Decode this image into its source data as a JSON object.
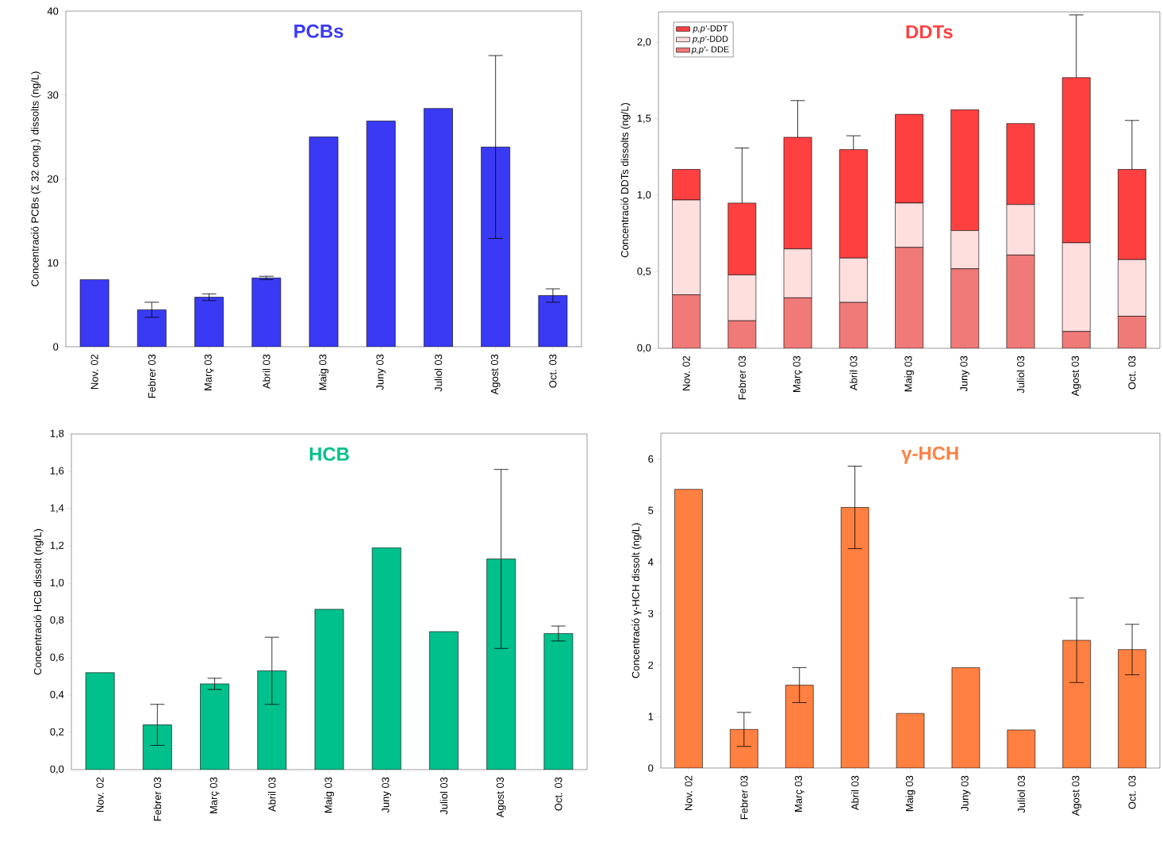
{
  "chart_data": [
    {
      "type": "bar",
      "title": "PCBs",
      "ylabel": "Concentració PCBs (Σ 32 cong.) dissolts (ng/L)",
      "categories": [
        "Nov. 02",
        "Febrer 03",
        "Març 03",
        "Abril 03",
        "Maig 03",
        "Juny 03",
        "Juliol 03",
        "Agost 03",
        "Oct. 03"
      ],
      "series": [
        {
          "color": "#3a3af5",
          "values": [
            8.0,
            4.4,
            5.9,
            8.2,
            25.0,
            26.9,
            28.4,
            23.8,
            6.1
          ],
          "errors": [
            null,
            0.9,
            0.4,
            0.2,
            null,
            null,
            null,
            10.9,
            0.8
          ]
        }
      ],
      "ylim": [
        0,
        40
      ],
      "yticks": [
        0,
        10,
        20,
        30,
        40
      ]
    },
    {
      "type": "bar",
      "title": "DDTs",
      "ylabel": "Concentració DDTs dissolts (ng/L)",
      "stacked": true,
      "legend": "top left",
      "categories": [
        "Nov. 02",
        "Febrer 03",
        "Març 03",
        "Abril 03",
        "Maig 03",
        "Juny 03",
        "Juliol 03",
        "Agost 03",
        "Oct. 03"
      ],
      "series": [
        {
          "name": "*p,p'*- DDE",
          "color": "#f07a78",
          "values": [
            0.35,
            0.18,
            0.33,
            0.3,
            0.66,
            0.52,
            0.61,
            0.11,
            0.21
          ]
        },
        {
          "name": "*p,p'*-DDD",
          "color": "#ffdede",
          "values": [
            0.62,
            0.3,
            0.32,
            0.29,
            0.29,
            0.25,
            0.33,
            0.58,
            0.37
          ]
        },
        {
          "name": "*p,p'*-DDT",
          "color": "#ff4040",
          "values": [
            0.2,
            0.47,
            0.73,
            0.71,
            0.58,
            0.79,
            0.53,
            1.08,
            0.59
          ],
          "errors": [
            null,
            0.36,
            0.24,
            0.09,
            null,
            null,
            null,
            0.41,
            0.32
          ]
        }
      ],
      "ylim": [
        0,
        2.2
      ],
      "yticks": [
        {
          "value": 0,
          "label": "0,0"
        },
        {
          "value": 0.5,
          "label": "0,5"
        },
        {
          "value": 1.0,
          "label": "1,0"
        },
        {
          "value": 1.5,
          "label": "1,5"
        },
        {
          "value": 2.0,
          "label": "2,0"
        }
      ]
    },
    {
      "type": "bar",
      "title": "HCB",
      "ylabel": "Concentració HCB dissolt (ng/L)",
      "categories": [
        "Nov. 02",
        "Febrer 03",
        "Març 03",
        "Abril 03",
        "Maig 03",
        "Juny 03",
        "Juliol 03",
        "Agost 03",
        "Oct. 03"
      ],
      "series": [
        {
          "color": "#00c08b",
          "values": [
            0.52,
            0.24,
            0.46,
            0.53,
            0.86,
            1.19,
            0.74,
            1.13,
            0.73
          ],
          "errors": [
            null,
            0.11,
            0.03,
            0.18,
            null,
            null,
            null,
            0.48,
            0.04
          ]
        }
      ],
      "ylim": [
        0,
        1.8
      ],
      "yticks": [
        {
          "value": 0,
          "label": "0,0"
        },
        {
          "value": 0.2,
          "label": "0,2"
        },
        {
          "value": 0.4,
          "label": "0,4"
        },
        {
          "value": 0.6,
          "label": "0,6"
        },
        {
          "value": 0.8,
          "label": "0,8"
        },
        {
          "value": 1.0,
          "label": "1,0"
        },
        {
          "value": 1.2,
          "label": "1,2"
        },
        {
          "value": 1.4,
          "label": "1,4"
        },
        {
          "value": 1.6,
          "label": "1,6"
        },
        {
          "value": 1.8,
          "label": "1,8"
        }
      ]
    },
    {
      "type": "bar",
      "title": "γ-HCH",
      "ylabel": "Concentració γ-HCH dissolt (ng/L)",
      "categories": [
        "Nov. 02",
        "Febrer 03",
        "Març 03",
        "Abril 03",
        "Maig 03",
        "Juny 03",
        "Juliol 03",
        "Agost 03",
        "Oct. 03"
      ],
      "series": [
        {
          "color": "#ff8040",
          "values": [
            5.41,
            0.75,
            1.61,
            5.06,
            1.06,
            1.95,
            0.74,
            2.48,
            2.3
          ],
          "errors": [
            null,
            0.33,
            0.34,
            0.8,
            null,
            null,
            null,
            0.82,
            0.49
          ]
        }
      ],
      "ylim": [
        0,
        6.5
      ],
      "yticks": [
        0,
        1,
        2,
        3,
        4,
        5,
        6
      ]
    }
  ]
}
